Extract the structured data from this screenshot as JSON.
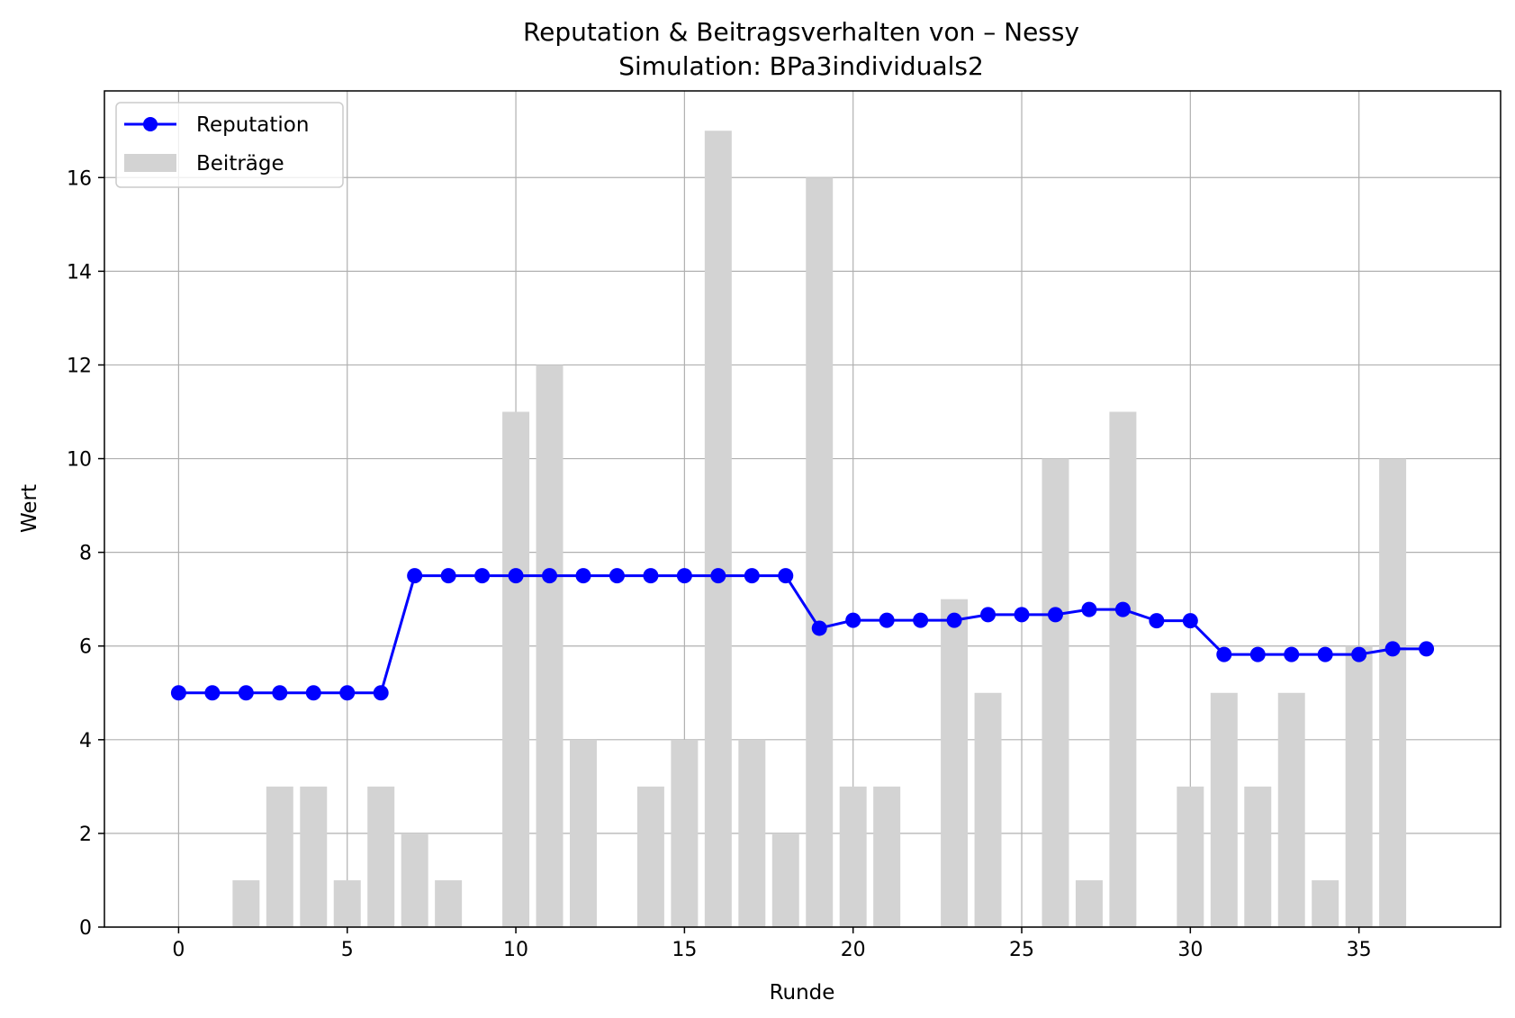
{
  "chart_data": {
    "type": "bar+line",
    "title": "Reputation & Beitragsverhalten von – Nessy",
    "subtitle": "Simulation: BPa3individuals2",
    "xlabel": "Runde",
    "ylabel": "Wert",
    "xlim": [
      -2.2,
      39.2
    ],
    "ylim": [
      0,
      17.85
    ],
    "xticks": [
      0,
      5,
      10,
      15,
      20,
      25,
      30,
      35
    ],
    "yticks": [
      0,
      2,
      4,
      6,
      8,
      10,
      12,
      14,
      16
    ],
    "grid": true,
    "legend_position": "top-left",
    "x": [
      0,
      1,
      2,
      3,
      4,
      5,
      6,
      7,
      8,
      9,
      10,
      11,
      12,
      13,
      14,
      15,
      16,
      17,
      18,
      19,
      20,
      21,
      22,
      23,
      24,
      25,
      26,
      27,
      28,
      29,
      30,
      31,
      32,
      33,
      34,
      35,
      36,
      37
    ],
    "series": [
      {
        "name": "Reputation",
        "kind": "line",
        "color": "#0000ff",
        "values": [
          5,
          5,
          5,
          5,
          5,
          5,
          5,
          7.5,
          7.5,
          7.5,
          7.5,
          7.5,
          7.5,
          7.5,
          7.5,
          7.5,
          7.5,
          7.5,
          7.5,
          6.38,
          6.55,
          6.55,
          6.55,
          6.55,
          6.67,
          6.67,
          6.67,
          6.78,
          6.78,
          6.54,
          6.54,
          5.82,
          5.82,
          5.82,
          5.82,
          5.82,
          5.94,
          5.94
        ]
      },
      {
        "name": "Beiträge",
        "kind": "bar",
        "color": "#d3d3d3",
        "values": [
          0,
          0,
          1,
          3,
          3,
          1,
          3,
          2,
          1,
          0,
          11,
          12,
          4,
          0,
          3,
          4,
          17,
          4,
          2,
          16,
          3,
          3,
          0,
          7,
          5,
          0,
          10,
          1,
          11,
          0,
          3,
          5,
          3,
          5,
          1,
          6,
          10,
          0
        ]
      }
    ]
  }
}
